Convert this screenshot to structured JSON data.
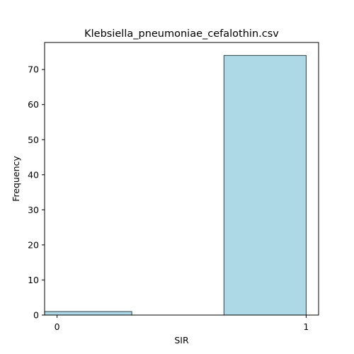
{
  "chart_data": {
    "type": "bar",
    "title": "Klebsiella_pneumoniae_cefalothin.csv",
    "xlabel": "SIR",
    "ylabel": "Frequency",
    "bins": [
      {
        "x_start": -0.05,
        "x_end": 0.3,
        "value": 1
      },
      {
        "x_start": 0.67,
        "x_end": 1.0,
        "value": 74
      }
    ],
    "x_ticks": [
      0,
      1
    ],
    "x_tick_labels": [
      "0",
      "1"
    ],
    "y_ticks": [
      0,
      10,
      20,
      30,
      40,
      50,
      60,
      70
    ],
    "y_tick_labels": [
      "0",
      "10",
      "20",
      "30",
      "40",
      "50",
      "60",
      "70"
    ],
    "xlim": [
      -0.05,
      1.05
    ],
    "ylim": [
      0,
      77.7
    ],
    "grid": false,
    "colors": {
      "bar_fill": "#add8e6",
      "bar_edge": "#2f3f44"
    }
  }
}
